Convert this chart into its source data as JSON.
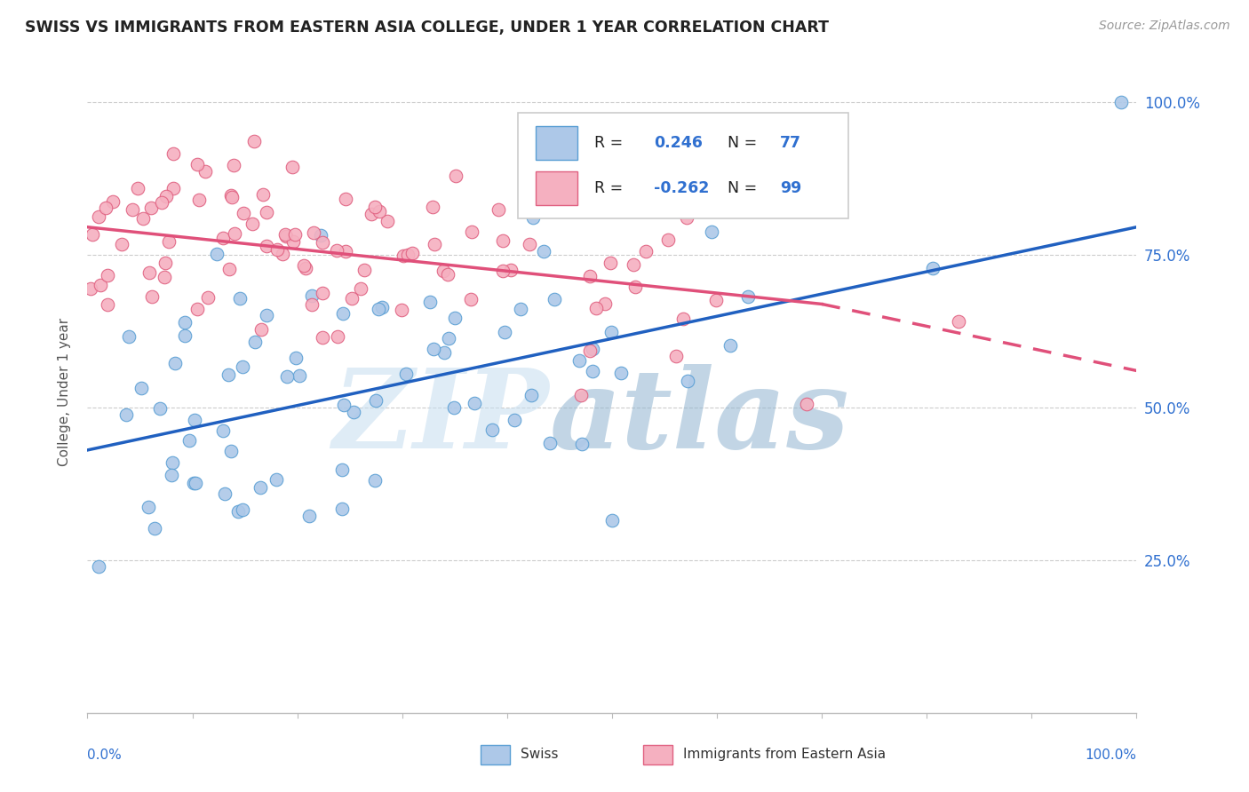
{
  "title": "SWISS VS IMMIGRANTS FROM EASTERN ASIA COLLEGE, UNDER 1 YEAR CORRELATION CHART",
  "source": "Source: ZipAtlas.com",
  "ylabel": "College, Under 1 year",
  "xlim": [
    0.0,
    1.0
  ],
  "ylim": [
    0.0,
    1.05
  ],
  "ytick_vals": [
    0.25,
    0.5,
    0.75,
    1.0
  ],
  "ytick_labels": [
    "25.0%",
    "50.0%",
    "75.0%",
    "100.0%"
  ],
  "legend_r_swiss": "0.246",
  "legend_n_swiss": "77",
  "legend_r_imm": "-0.262",
  "legend_n_imm": "99",
  "swiss_fill": "#adc8e8",
  "swiss_edge": "#5a9fd4",
  "imm_fill": "#f5b0c0",
  "imm_edge": "#e06080",
  "blue_line_color": "#2060c0",
  "pink_line_color": "#e0507a",
  "text_color_blue": "#3070d0",
  "watermark_zip": "#c8ddf0",
  "watermark_atlas": "#90b8d8",
  "background": "#ffffff",
  "grid_color": "#cccccc",
  "swiss_line_start_y": 0.43,
  "swiss_line_end_y": 0.795,
  "imm_line_start_y": 0.795,
  "imm_line_end_y": 0.615,
  "imm_line_dash_start_x": 0.7,
  "imm_line_end_y_extrapolated": 0.56,
  "seed": 12345
}
